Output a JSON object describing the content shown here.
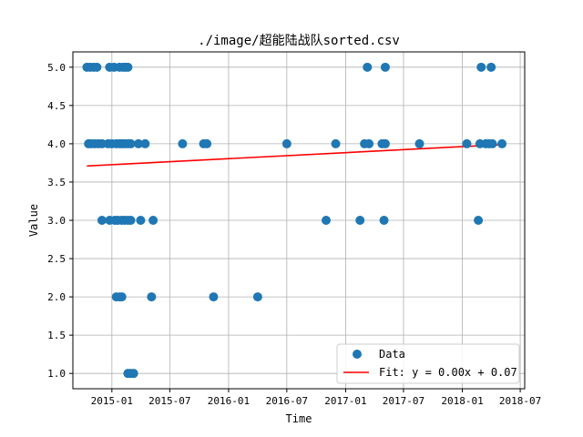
{
  "chart_data": {
    "type": "scatter",
    "title": "./image/超能陆战队sorted.csv",
    "xlabel": "Time",
    "ylabel": "Value",
    "x_range": [
      "2014-09-01",
      "2018-07-15"
    ],
    "ylim": [
      0.8,
      5.2
    ],
    "grid": true,
    "legend_position": "bottom-right",
    "xticks": [
      {
        "date": "2015-01-01",
        "label": "2015-01"
      },
      {
        "date": "2015-07-01",
        "label": "2015-07"
      },
      {
        "date": "2016-01-01",
        "label": "2016-01"
      },
      {
        "date": "2016-07-01",
        "label": "2016-07"
      },
      {
        "date": "2017-01-01",
        "label": "2017-01"
      },
      {
        "date": "2017-07-01",
        "label": "2017-07"
      },
      {
        "date": "2018-01-01",
        "label": "2018-01"
      },
      {
        "date": "2018-07-01",
        "label": "2018-07"
      }
    ],
    "yticks": [
      {
        "value": 1.0,
        "label": "1.0"
      },
      {
        "value": 1.5,
        "label": "1.5"
      },
      {
        "value": 2.0,
        "label": "2.0"
      },
      {
        "value": 2.5,
        "label": "2.5"
      },
      {
        "value": 3.0,
        "label": "3.0"
      },
      {
        "value": 3.5,
        "label": "3.5"
      },
      {
        "value": 4.0,
        "label": "4.0"
      },
      {
        "value": 4.5,
        "label": "4.5"
      },
      {
        "value": 5.0,
        "label": "5.0"
      }
    ],
    "series": [
      {
        "name": "Data",
        "kind": "scatter",
        "color": "#1f77b4",
        "points": [
          {
            "x": "2014-10-15",
            "y": 5.0
          },
          {
            "x": "2014-10-25",
            "y": 5.0
          },
          {
            "x": "2014-11-05",
            "y": 5.0
          },
          {
            "x": "2014-11-15",
            "y": 5.0
          },
          {
            "x": "2014-12-25",
            "y": 5.0
          },
          {
            "x": "2015-01-08",
            "y": 5.0
          },
          {
            "x": "2015-01-25",
            "y": 5.0
          },
          {
            "x": "2015-02-05",
            "y": 5.0
          },
          {
            "x": "2015-02-12",
            "y": 5.0
          },
          {
            "x": "2015-02-20",
            "y": 5.0
          },
          {
            "x": "2014-10-20",
            "y": 4.0
          },
          {
            "x": "2014-10-28",
            "y": 4.0
          },
          {
            "x": "2014-11-08",
            "y": 4.0
          },
          {
            "x": "2014-11-20",
            "y": 4.0
          },
          {
            "x": "2014-12-01",
            "y": 4.0
          },
          {
            "x": "2014-12-20",
            "y": 4.0
          },
          {
            "x": "2015-01-01",
            "y": 4.0
          },
          {
            "x": "2015-01-15",
            "y": 4.0
          },
          {
            "x": "2015-01-25",
            "y": 4.0
          },
          {
            "x": "2015-02-01",
            "y": 4.0
          },
          {
            "x": "2015-02-10",
            "y": 4.0
          },
          {
            "x": "2015-02-20",
            "y": 4.0
          },
          {
            "x": "2015-03-01",
            "y": 4.0
          },
          {
            "x": "2015-03-25",
            "y": 4.0
          },
          {
            "x": "2015-04-15",
            "y": 4.0
          },
          {
            "x": "2015-08-10",
            "y": 4.0
          },
          {
            "x": "2015-10-15",
            "y": 4.0
          },
          {
            "x": "2015-10-25",
            "y": 4.0
          },
          {
            "x": "2016-07-01",
            "y": 4.0
          },
          {
            "x": "2016-12-01",
            "y": 4.0
          },
          {
            "x": "2017-03-01",
            "y": 4.0
          },
          {
            "x": "2017-03-15",
            "y": 4.0
          },
          {
            "x": "2017-04-25",
            "y": 4.0
          },
          {
            "x": "2017-05-05",
            "y": 4.0
          },
          {
            "x": "2017-08-20",
            "y": 4.0
          },
          {
            "x": "2018-01-15",
            "y": 4.0
          },
          {
            "x": "2018-02-25",
            "y": 4.0
          },
          {
            "x": "2018-03-15",
            "y": 4.0
          },
          {
            "x": "2018-03-25",
            "y": 4.0
          },
          {
            "x": "2018-04-05",
            "y": 4.0
          },
          {
            "x": "2018-05-05",
            "y": 4.0
          },
          {
            "x": "2014-12-01",
            "y": 3.0
          },
          {
            "x": "2014-12-25",
            "y": 3.0
          },
          {
            "x": "2015-01-10",
            "y": 3.0
          },
          {
            "x": "2015-01-20",
            "y": 3.0
          },
          {
            "x": "2015-02-01",
            "y": 3.0
          },
          {
            "x": "2015-02-10",
            "y": 3.0
          },
          {
            "x": "2015-02-20",
            "y": 3.0
          },
          {
            "x": "2015-03-01",
            "y": 3.0
          },
          {
            "x": "2015-04-01",
            "y": 3.0
          },
          {
            "x": "2015-05-10",
            "y": 3.0
          },
          {
            "x": "2016-11-01",
            "y": 3.0
          },
          {
            "x": "2017-02-15",
            "y": 3.0
          },
          {
            "x": "2017-05-01",
            "y": 3.0
          },
          {
            "x": "2018-02-20",
            "y": 3.0
          },
          {
            "x": "2015-01-15",
            "y": 2.0
          },
          {
            "x": "2015-01-25",
            "y": 2.0
          },
          {
            "x": "2015-02-01",
            "y": 2.0
          },
          {
            "x": "2015-05-05",
            "y": 2.0
          },
          {
            "x": "2015-11-15",
            "y": 2.0
          },
          {
            "x": "2016-04-01",
            "y": 2.0
          },
          {
            "x": "2015-02-20",
            "y": 1.0
          },
          {
            "x": "2015-03-01",
            "y": 1.0
          },
          {
            "x": "2015-03-10",
            "y": 1.0
          },
          {
            "x": "2017-03-10",
            "y": 5.0
          },
          {
            "x": "2017-05-05",
            "y": 5.0
          },
          {
            "x": "2018-03-01",
            "y": 5.0
          },
          {
            "x": "2018-04-01",
            "y": 5.0
          }
        ]
      },
      {
        "name": "Fit: y = 0.00x + 0.07",
        "kind": "line",
        "color": "#ff0000",
        "points": [
          {
            "x": "2014-10-15",
            "y": 3.71
          },
          {
            "x": "2018-05-05",
            "y": 3.99
          }
        ]
      }
    ]
  }
}
